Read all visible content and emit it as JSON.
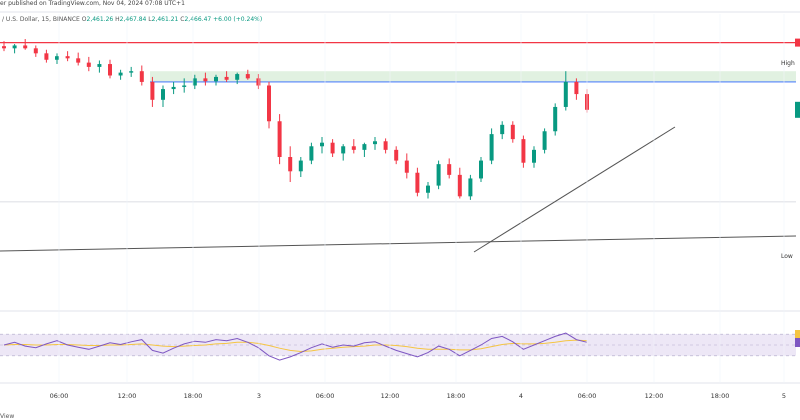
{
  "header": {
    "line1": "er published on TradingView.com, Nov 04, 2024 07:08 UTC+1",
    "symbol_line": "/ U.S. Dollar, 15, BINANCE",
    "ohlc": [
      {
        "label": "O",
        "value": "2,461.26"
      },
      {
        "label": "H",
        "value": "2,467.84"
      },
      {
        "label": "L",
        "value": "2,461.21"
      },
      {
        "label": "C",
        "value": "2,466.47"
      }
    ],
    "change": "+6.00 (+0.24%)"
  },
  "labels": {
    "high": "High",
    "low": "Low"
  },
  "footer": {
    "text": "View"
  },
  "colors": {
    "up": "#089981",
    "down": "#f23645",
    "high_line": "#f23645",
    "zone": "#c8e6c9",
    "zone_line": "#2962ff",
    "rsi": "#7e57c2",
    "rsi_ma": "#f5c542",
    "rsi_band": "#ede7f6"
  },
  "chart_data": {
    "type": "candlestick",
    "x_ticks": [
      "06:00",
      "12:00",
      "18:00",
      "3",
      "06:00",
      "12:00",
      "18:00",
      "4",
      "06:00",
      "12:00",
      "18:00",
      "5"
    ],
    "price_range": [
      2200,
      2600
    ],
    "high_level": 2560,
    "low_level": 2340,
    "resistance_zone": [
      2505,
      2520
    ],
    "candles": [
      [
        2555,
        2562,
        2548,
        2552
      ],
      [
        2552,
        2558,
        2545,
        2556
      ],
      [
        2556,
        2565,
        2550,
        2552
      ],
      [
        2552,
        2556,
        2540,
        2545
      ],
      [
        2545,
        2550,
        2532,
        2536
      ],
      [
        2536,
        2545,
        2530,
        2541
      ],
      [
        2541,
        2548,
        2534,
        2538
      ],
      [
        2538,
        2546,
        2528,
        2532
      ],
      [
        2532,
        2540,
        2520,
        2526
      ],
      [
        2526,
        2535,
        2518,
        2530
      ],
      [
        2530,
        2536,
        2510,
        2514
      ],
      [
        2514,
        2522,
        2508,
        2518
      ],
      [
        2518,
        2526,
        2512,
        2520
      ],
      [
        2520,
        2528,
        2500,
        2505
      ],
      [
        2505,
        2512,
        2470,
        2480
      ],
      [
        2480,
        2500,
        2470,
        2495
      ],
      [
        2495,
        2505,
        2488,
        2498
      ],
      [
        2498,
        2510,
        2490,
        2500
      ],
      [
        2500,
        2515,
        2495,
        2510
      ],
      [
        2510,
        2518,
        2500,
        2506
      ],
      [
        2506,
        2515,
        2500,
        2512
      ],
      [
        2512,
        2520,
        2505,
        2508
      ],
      [
        2508,
        2518,
        2502,
        2516
      ],
      [
        2516,
        2522,
        2508,
        2510
      ],
      [
        2510,
        2516,
        2495,
        2500
      ],
      [
        2500,
        2505,
        2440,
        2450
      ],
      [
        2450,
        2460,
        2390,
        2400
      ],
      [
        2400,
        2415,
        2365,
        2380
      ],
      [
        2380,
        2400,
        2372,
        2395
      ],
      [
        2395,
        2420,
        2390,
        2415
      ],
      [
        2415,
        2428,
        2405,
        2420
      ],
      [
        2420,
        2425,
        2400,
        2405
      ],
      [
        2405,
        2418,
        2395,
        2415
      ],
      [
        2415,
        2425,
        2405,
        2410
      ],
      [
        2410,
        2420,
        2400,
        2418
      ],
      [
        2418,
        2428,
        2410,
        2422
      ],
      [
        2422,
        2426,
        2405,
        2410
      ],
      [
        2410,
        2415,
        2390,
        2395
      ],
      [
        2395,
        2405,
        2370,
        2378
      ],
      [
        2378,
        2385,
        2345,
        2350
      ],
      [
        2350,
        2365,
        2342,
        2360
      ],
      [
        2360,
        2395,
        2355,
        2390
      ],
      [
        2390,
        2398,
        2370,
        2375
      ],
      [
        2375,
        2385,
        2342,
        2345
      ],
      [
        2345,
        2375,
        2340,
        2370
      ],
      [
        2370,
        2400,
        2365,
        2395
      ],
      [
        2395,
        2440,
        2390,
        2432
      ],
      [
        2432,
        2450,
        2425,
        2445
      ],
      [
        2445,
        2450,
        2420,
        2425
      ],
      [
        2425,
        2430,
        2385,
        2392
      ],
      [
        2392,
        2415,
        2385,
        2410
      ],
      [
        2410,
        2440,
        2405,
        2436
      ],
      [
        2436,
        2475,
        2430,
        2470
      ],
      [
        2470,
        2520,
        2465,
        2505
      ],
      [
        2505,
        2510,
        2480,
        2488
      ],
      [
        2488,
        2495,
        2462,
        2466
      ]
    ],
    "rsi": {
      "range": [
        0,
        100
      ],
      "bands": [
        30,
        70
      ],
      "values": [
        50,
        55,
        48,
        45,
        52,
        58,
        50,
        46,
        42,
        48,
        54,
        51,
        56,
        60,
        40,
        35,
        44,
        52,
        57,
        55,
        60,
        58,
        62,
        55,
        45,
        30,
        22,
        28,
        36,
        45,
        52,
        46,
        50,
        48,
        54,
        56,
        48,
        40,
        34,
        28,
        36,
        48,
        42,
        30,
        40,
        50,
        62,
        66,
        56,
        42,
        50,
        58,
        66,
        72,
        60,
        55
      ],
      "ma": [
        50,
        51,
        51,
        50,
        50,
        51,
        51,
        50,
        49,
        49,
        50,
        50,
        51,
        52,
        50,
        48,
        47,
        48,
        49,
        50,
        52,
        53,
        55,
        55,
        53,
        49,
        44,
        40,
        38,
        39,
        42,
        44,
        46,
        47,
        48,
        50,
        50,
        49,
        47,
        44,
        42,
        42,
        42,
        41,
        41,
        43,
        47,
        51,
        53,
        52,
        52,
        53,
        55,
        58,
        59,
        58
      ]
    }
  }
}
